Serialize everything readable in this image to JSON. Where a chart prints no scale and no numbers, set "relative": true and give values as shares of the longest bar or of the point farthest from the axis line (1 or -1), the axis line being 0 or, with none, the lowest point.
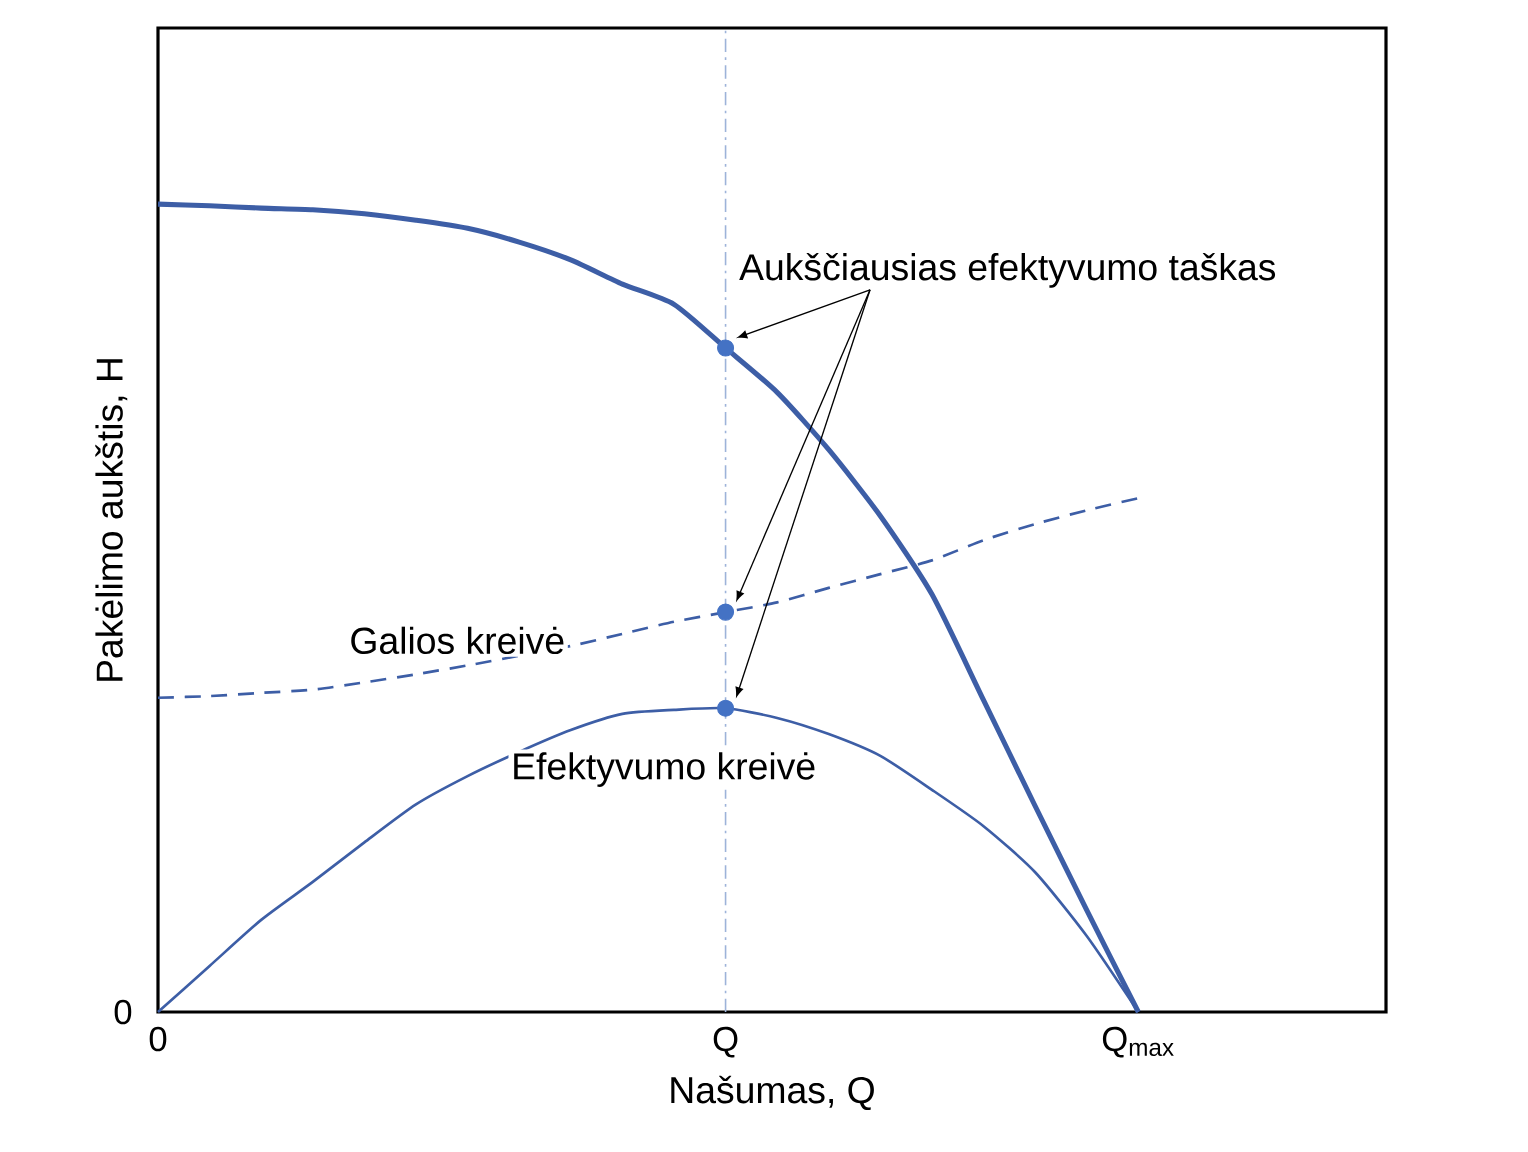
{
  "chart_data": {
    "type": "line",
    "relative": true,
    "xlabel": "Našumas, Q",
    "ylabel": "Pakėlimo aukštis, H",
    "categories": [
      "0",
      null,
      null,
      null,
      null,
      null,
      null,
      null,
      null,
      null,
      null,
      "Q",
      null,
      null,
      null,
      null,
      null,
      null,
      null,
      "Q$_{max}$",
      null,
      null,
      null,
      null
    ],
    "series": [
      {
        "color": "#3d5ea6",
        "values": [
          1.0,
          0.998,
          0.995,
          0.993,
          0.988,
          0.98,
          0.97,
          0.953,
          0.931,
          0.901,
          0.876,
          0.822,
          0.767,
          0.696,
          0.614,
          0.517,
          0.386,
          0.255,
          0.126,
          0,
          null,
          null,
          null,
          null
        ]
      },
      {
        "name": "Galios kreivė",
        "color": "#3d5ea6",
        "line_style": "dashed",
        "values": [
          0.389,
          0.391,
          0.395,
          0.399,
          0.408,
          0.418,
          0.429,
          0.441,
          0.453,
          0.468,
          0.483,
          0.495,
          0.507,
          0.525,
          0.542,
          0.559,
          0.584,
          0.604,
          0.621,
          0.636,
          null,
          null,
          null,
          null
        ]
      },
      {
        "name": "Efektyvumo kreivė",
        "color": "#3d5ea6",
        "values": [
          0,
          0.057,
          0.114,
          0.161,
          0.21,
          0.257,
          0.292,
          0.322,
          0.349,
          0.369,
          0.374,
          0.376,
          0.364,
          0.344,
          0.317,
          0.275,
          0.23,
          0.173,
          0.094,
          0,
          null,
          null,
          null,
          null
        ]
      },
      {
        "type": "scatter",
        "marker": "circle",
        "color": "#4472c4",
        "x": [
          "Q"
        ],
        "values": [
          0.822
        ]
      },
      {
        "type": "scatter",
        "marker": "circle",
        "color": "#4472c4",
        "x": [
          "Q"
        ],
        "values": [
          0.495
        ]
      },
      {
        "type": "scatter",
        "marker": "circle",
        "color": "#4472c4",
        "x": [
          "Q"
        ],
        "values": [
          0.376
        ]
      }
    ],
    "ref_lines": [
      {
        "axis": "x",
        "value": "Q",
        "color": "#9db3d9",
        "line_style": "dashed"
      }
    ],
    "annotations": [
      "Aukščiausias efektyvumo taškas",
      "0"
    ],
    "legend": false,
    "grid": false
  }
}
